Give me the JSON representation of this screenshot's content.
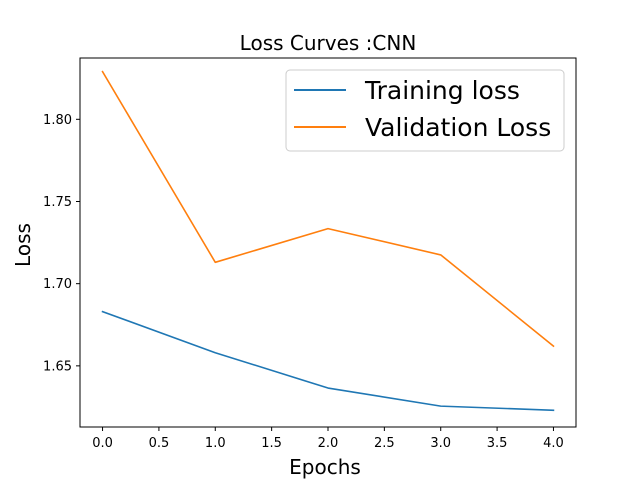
{
  "chart_data": {
    "type": "line",
    "title": "Loss Curves :CNN",
    "xlabel": "Epochs",
    "ylabel": "Loss",
    "x": [
      0,
      1,
      2,
      3,
      4
    ],
    "xlim": [
      -0.2,
      4.2
    ],
    "ylim": [
      1.6128,
      1.8373
    ],
    "xticks": [
      0.0,
      0.5,
      1.0,
      1.5,
      2.0,
      2.5,
      3.0,
      3.5,
      4.0
    ],
    "xtick_labels": [
      "0.0",
      "0.5",
      "1.0",
      "1.5",
      "2.0",
      "2.5",
      "3.0",
      "3.5",
      "4.0"
    ],
    "yticks": [
      1.65,
      1.7,
      1.75,
      1.8
    ],
    "ytick_labels": [
      "1.65",
      "1.70",
      "1.75",
      "1.80"
    ],
    "grid": false,
    "legend_position": "top-right",
    "series": [
      {
        "name": "Training loss",
        "color": "#1f77b4",
        "values": [
          1.683,
          1.658,
          1.6365,
          1.6255,
          1.623
        ]
      },
      {
        "name": "Validation Loss",
        "color": "#ff7f0e",
        "values": [
          1.829,
          1.713,
          1.7335,
          1.7175,
          1.662
        ]
      }
    ]
  }
}
